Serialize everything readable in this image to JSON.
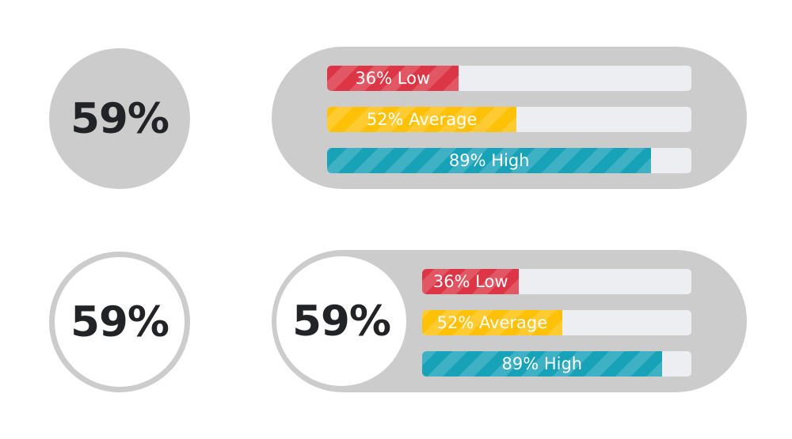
{
  "widgets": {
    "summary_value": "59%",
    "levels": [
      {
        "key": "low",
        "label": "36% Low",
        "value": 36,
        "color": "#dc3545"
      },
      {
        "key": "average",
        "label": "52% Average",
        "value": 52,
        "color": "#ffc107"
      },
      {
        "key": "high",
        "label": "89% High",
        "value": 89,
        "color": "#17a2b8"
      }
    ]
  },
  "colors": {
    "panel_gray": "#cccccc",
    "track": "#eceef1",
    "text_dark": "#222326"
  }
}
